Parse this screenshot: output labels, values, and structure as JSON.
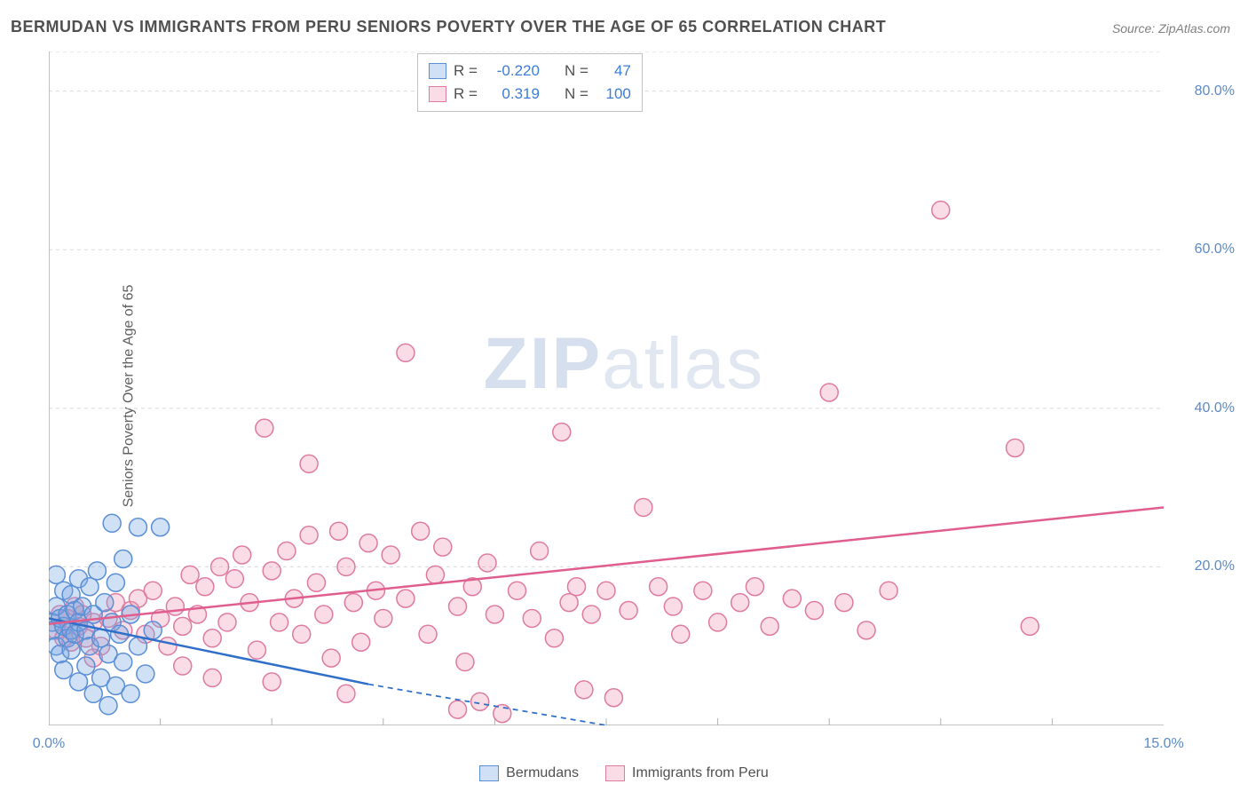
{
  "title": "BERMUDAN VS IMMIGRANTS FROM PERU SENIORS POVERTY OVER THE AGE OF 65 CORRELATION CHART",
  "source": "Source: ZipAtlas.com",
  "ylabel": "Seniors Poverty Over the Age of 65",
  "watermark_a": "ZIP",
  "watermark_b": "atlas",
  "chart": {
    "type": "scatter-correlation",
    "xlim": [
      0,
      15
    ],
    "ylim": [
      0,
      85
    ],
    "x_ticks": [
      0.0,
      15.0
    ],
    "x_tick_labels": [
      "0.0%",
      "15.0%"
    ],
    "x_subticks": [
      1.5,
      3.0,
      4.5,
      6.0,
      7.5,
      9.0,
      10.5,
      12.0,
      13.5
    ],
    "y_ticks": [
      20.0,
      40.0,
      60.0,
      80.0
    ],
    "y_tick_labels": [
      "20.0%",
      "40.0%",
      "60.0%",
      "80.0%"
    ],
    "grid_color": "#d9d9d9",
    "axis_color": "#b0b0b0",
    "background": "#ffffff",
    "marker_radius": 10,
    "marker_stroke_width": 1.5,
    "line_width": 2.5,
    "series": [
      {
        "name": "Bermudans",
        "fill": "rgba(120,165,225,0.35)",
        "stroke": "#5a8fd6",
        "line_color": "#2f6fc9",
        "R": "-0.220",
        "N": "47",
        "trend": {
          "x1": 0.0,
          "y1": 13.5,
          "x2": 4.3,
          "y2": 5.2,
          "dash_x2": 7.5,
          "dash_y2": -1.0
        },
        "points": [
          [
            0.05,
            13.0
          ],
          [
            0.05,
            12.0
          ],
          [
            0.1,
            19.0
          ],
          [
            0.1,
            15.0
          ],
          [
            0.1,
            10.0
          ],
          [
            0.15,
            13.5
          ],
          [
            0.15,
            9.0
          ],
          [
            0.2,
            17.0
          ],
          [
            0.2,
            12.5
          ],
          [
            0.2,
            7.0
          ],
          [
            0.25,
            14.0
          ],
          [
            0.25,
            11.0
          ],
          [
            0.3,
            16.5
          ],
          [
            0.3,
            12.0
          ],
          [
            0.3,
            9.5
          ],
          [
            0.35,
            14.5
          ],
          [
            0.35,
            11.5
          ],
          [
            0.4,
            18.5
          ],
          [
            0.4,
            13.0
          ],
          [
            0.4,
            5.5
          ],
          [
            0.45,
            15.0
          ],
          [
            0.5,
            12.0
          ],
          [
            0.5,
            7.5
          ],
          [
            0.55,
            17.5
          ],
          [
            0.55,
            10.0
          ],
          [
            0.6,
            14.0
          ],
          [
            0.6,
            4.0
          ],
          [
            0.65,
            19.5
          ],
          [
            0.7,
            11.0
          ],
          [
            0.7,
            6.0
          ],
          [
            0.75,
            15.5
          ],
          [
            0.8,
            9.0
          ],
          [
            0.8,
            2.5
          ],
          [
            0.85,
            25.5
          ],
          [
            0.85,
            13.0
          ],
          [
            0.9,
            18.0
          ],
          [
            0.9,
            5.0
          ],
          [
            0.95,
            11.5
          ],
          [
            1.0,
            21.0
          ],
          [
            1.0,
            8.0
          ],
          [
            1.1,
            14.0
          ],
          [
            1.1,
            4.0
          ],
          [
            1.2,
            25.0
          ],
          [
            1.2,
            10.0
          ],
          [
            1.3,
            6.5
          ],
          [
            1.4,
            12.0
          ],
          [
            1.5,
            25.0
          ]
        ]
      },
      {
        "name": "Immigants from Peru",
        "legend_label": "Immigrants from Peru",
        "fill": "rgba(235,140,170,0.30)",
        "stroke": "#df7ba0",
        "line_color": "#e05e8d",
        "R": "0.319",
        "N": "100",
        "trend": {
          "x1": 0.0,
          "y1": 12.8,
          "x2": 15.0,
          "y2": 27.5
        },
        "points": [
          [
            0.1,
            12.0
          ],
          [
            0.15,
            14.0
          ],
          [
            0.2,
            11.0
          ],
          [
            0.25,
            13.5
          ],
          [
            0.3,
            10.5
          ],
          [
            0.35,
            15.0
          ],
          [
            0.4,
            12.5
          ],
          [
            0.45,
            14.0
          ],
          [
            0.5,
            11.0
          ],
          [
            0.6,
            13.0
          ],
          [
            0.7,
            10.0
          ],
          [
            0.8,
            13.5
          ],
          [
            0.9,
            15.5
          ],
          [
            1.0,
            12.0
          ],
          [
            1.1,
            14.5
          ],
          [
            1.2,
            16.0
          ],
          [
            1.3,
            11.5
          ],
          [
            1.4,
            17.0
          ],
          [
            1.5,
            13.5
          ],
          [
            1.6,
            10.0
          ],
          [
            1.7,
            15.0
          ],
          [
            1.8,
            12.5
          ],
          [
            1.9,
            19.0
          ],
          [
            2.0,
            14.0
          ],
          [
            2.1,
            17.5
          ],
          [
            2.2,
            11.0
          ],
          [
            2.3,
            20.0
          ],
          [
            2.4,
            13.0
          ],
          [
            2.5,
            18.5
          ],
          [
            2.6,
            21.5
          ],
          [
            2.7,
            15.5
          ],
          [
            2.8,
            9.5
          ],
          [
            2.9,
            37.5
          ],
          [
            3.0,
            19.5
          ],
          [
            3.1,
            13.0
          ],
          [
            3.2,
            22.0
          ],
          [
            3.3,
            16.0
          ],
          [
            3.4,
            11.5
          ],
          [
            3.5,
            33.0
          ],
          [
            3.5,
            24.0
          ],
          [
            3.6,
            18.0
          ],
          [
            3.7,
            14.0
          ],
          [
            3.8,
            8.5
          ],
          [
            3.9,
            24.5
          ],
          [
            4.0,
            20.0
          ],
          [
            4.1,
            15.5
          ],
          [
            4.2,
            10.5
          ],
          [
            4.3,
            23.0
          ],
          [
            4.4,
            17.0
          ],
          [
            4.5,
            13.5
          ],
          [
            4.6,
            21.5
          ],
          [
            4.8,
            47.0
          ],
          [
            4.8,
            16.0
          ],
          [
            5.0,
            24.5
          ],
          [
            5.1,
            11.5
          ],
          [
            5.2,
            19.0
          ],
          [
            5.3,
            22.5
          ],
          [
            5.5,
            15.0
          ],
          [
            5.6,
            8.0
          ],
          [
            5.7,
            17.5
          ],
          [
            5.8,
            3.0
          ],
          [
            5.9,
            20.5
          ],
          [
            6.0,
            14.0
          ],
          [
            6.1,
            1.5
          ],
          [
            6.3,
            17.0
          ],
          [
            6.5,
            13.5
          ],
          [
            6.6,
            22.0
          ],
          [
            6.8,
            11.0
          ],
          [
            6.9,
            37.0
          ],
          [
            7.0,
            15.5
          ],
          [
            7.1,
            17.5
          ],
          [
            7.2,
            4.5
          ],
          [
            7.3,
            14.0
          ],
          [
            7.5,
            17.0
          ],
          [
            7.6,
            3.5
          ],
          [
            7.8,
            14.5
          ],
          [
            8.0,
            27.5
          ],
          [
            8.2,
            17.5
          ],
          [
            8.4,
            15.0
          ],
          [
            8.5,
            11.5
          ],
          [
            8.8,
            17.0
          ],
          [
            9.0,
            13.0
          ],
          [
            9.3,
            15.5
          ],
          [
            9.5,
            17.5
          ],
          [
            9.7,
            12.5
          ],
          [
            10.0,
            16.0
          ],
          [
            10.3,
            14.5
          ],
          [
            10.5,
            42.0
          ],
          [
            10.7,
            15.5
          ],
          [
            11.0,
            12.0
          ],
          [
            11.3,
            17.0
          ],
          [
            12.0,
            65.0
          ],
          [
            13.0,
            35.0
          ],
          [
            13.2,
            12.5
          ],
          [
            0.6,
            8.5
          ],
          [
            1.8,
            7.5
          ],
          [
            2.2,
            6.0
          ],
          [
            3.0,
            5.5
          ],
          [
            4.0,
            4.0
          ],
          [
            5.5,
            2.0
          ]
        ]
      }
    ]
  },
  "legend": {
    "series1_label": "Bermudans",
    "series2_label": "Immigrants from Peru"
  },
  "stats_labels": {
    "R": "R =",
    "N": "N ="
  }
}
